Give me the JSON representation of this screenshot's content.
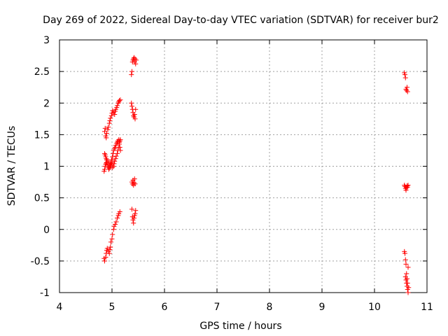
{
  "chart_data": {
    "type": "scatter",
    "title": "Day 269 of 2022, Sidereal Day-to-day VTEC variation (SDTVAR) for receiver bur2",
    "xlabel": "GPS time / hours",
    "ylabel": "SDTVAR / TECUs",
    "xlim": [
      4,
      11
    ],
    "ylim": [
      -1,
      3
    ],
    "xticks": [
      4,
      5,
      6,
      7,
      8,
      9,
      10,
      11
    ],
    "xtick_labels": [
      "4",
      "5",
      "6",
      "7",
      "8",
      "9",
      "10",
      "11"
    ],
    "yticks": [
      -1,
      -0.5,
      0,
      0.5,
      1,
      1.5,
      2,
      2.5,
      3
    ],
    "ytick_labels": [
      "-1",
      "-0.5",
      "0",
      "0.5",
      "1",
      "1.5",
      "2",
      "2.5",
      "3"
    ],
    "grid": true,
    "marker": "+",
    "marker_color": "#ff0000",
    "grid_color": "#a0a0a0",
    "series": [
      {
        "name": "sdtvar",
        "x": [
          4.85,
          4.86,
          4.87,
          4.88,
          4.89,
          4.9,
          4.92,
          4.93,
          4.94,
          4.95,
          4.97,
          4.98,
          4.99,
          5.0,
          5.01,
          5.02,
          5.03,
          5.05,
          5.06,
          5.07,
          5.09,
          5.1,
          5.11,
          5.13,
          5.14,
          5.15,
          5.16,
          4.86,
          4.87,
          4.88,
          4.89,
          4.9,
          4.92,
          4.93,
          4.95,
          4.96,
          4.97,
          4.99,
          5.0,
          5.01,
          5.03,
          5.04,
          5.05,
          5.07,
          5.08,
          5.1,
          5.11,
          5.13,
          5.14,
          5.15,
          5.16,
          4.86,
          4.87,
          4.88,
          4.89,
          4.9,
          4.92,
          4.93,
          4.95,
          4.96,
          4.97,
          4.99,
          5.0,
          5.01,
          5.03,
          5.05,
          5.06,
          5.07,
          5.09,
          5.1,
          5.12,
          5.13,
          5.14,
          5.16,
          4.85,
          4.86,
          4.88,
          4.89,
          4.9,
          4.91,
          4.93,
          4.95,
          4.96,
          4.97,
          4.98,
          5.0,
          5.01,
          5.03,
          5.04,
          5.06,
          5.08,
          5.1,
          5.12,
          5.13,
          5.15,
          5.37,
          5.38,
          5.39,
          5.4,
          5.41,
          5.42,
          5.43,
          5.44,
          5.45,
          5.46,
          5.37,
          5.38,
          5.39,
          5.4,
          5.41,
          5.42,
          5.43,
          5.44,
          5.45,
          5.38,
          5.39,
          5.4,
          5.41,
          5.42,
          5.43,
          5.44,
          5.38,
          5.39,
          5.4,
          5.41,
          5.42,
          5.43,
          5.44,
          5.45,
          10.57,
          10.58,
          10.59,
          10.6,
          10.61,
          10.62,
          10.63,
          10.57,
          10.58,
          10.59,
          10.6,
          10.61,
          10.62,
          10.63,
          10.64,
          10.57,
          10.58,
          10.59,
          10.6,
          10.61,
          10.62,
          10.63,
          10.64,
          10.59,
          10.6,
          10.61,
          10.62,
          10.63,
          10.64,
          10.65
        ],
        "y": [
          0.92,
          0.95,
          1.0,
          1.03,
          1.05,
          1.06,
          1.02,
          0.98,
          0.95,
          0.97,
          1.0,
          1.02,
          1.06,
          1.1,
          1.15,
          1.2,
          1.25,
          1.28,
          1.3,
          1.33,
          1.36,
          1.38,
          1.4,
          1.42,
          1.38,
          1.3,
          1.25,
          1.2,
          1.18,
          1.15,
          1.12,
          1.1,
          1.08,
          1.05,
          1.02,
          1.0,
          1.05,
          1.1,
          1.04,
          0.98,
          1.0,
          1.04,
          1.08,
          1.12,
          1.16,
          1.2,
          1.25,
          1.3,
          1.35,
          1.4,
          1.42,
          1.55,
          1.6,
          1.48,
          1.45,
          1.52,
          1.58,
          1.62,
          1.68,
          1.72,
          1.76,
          1.8,
          1.84,
          1.88,
          1.85,
          1.82,
          1.87,
          1.9,
          1.93,
          1.96,
          2.0,
          2.02,
          2.04,
          2.05,
          -0.46,
          -0.5,
          -0.44,
          -0.38,
          -0.33,
          -0.3,
          -0.35,
          -0.38,
          -0.32,
          -0.28,
          -0.2,
          -0.15,
          -0.08,
          0.0,
          0.05,
          0.08,
          0.12,
          0.18,
          0.22,
          0.25,
          0.28,
          2.45,
          2.5,
          2.65,
          2.68,
          2.7,
          2.72,
          2.65,
          2.7,
          2.62,
          2.68,
          2.0,
          1.95,
          1.9,
          1.85,
          1.8,
          1.78,
          1.82,
          1.75,
          1.9,
          0.75,
          0.72,
          0.78,
          0.7,
          0.74,
          0.8,
          0.72,
          0.32,
          0.2,
          0.15,
          0.1,
          0.18,
          0.22,
          0.25,
          0.3,
          2.48,
          2.45,
          2.4,
          2.22,
          2.2,
          2.25,
          2.18,
          0.7,
          0.68,
          0.65,
          0.62,
          0.66,
          0.69,
          0.67,
          0.7,
          -0.35,
          -0.38,
          -0.48,
          -0.55,
          -0.7,
          -0.78,
          -0.85,
          -0.6,
          -0.75,
          -0.8,
          -0.85,
          -0.9,
          -0.95,
          -1.0,
          -0.92
        ]
      }
    ]
  }
}
